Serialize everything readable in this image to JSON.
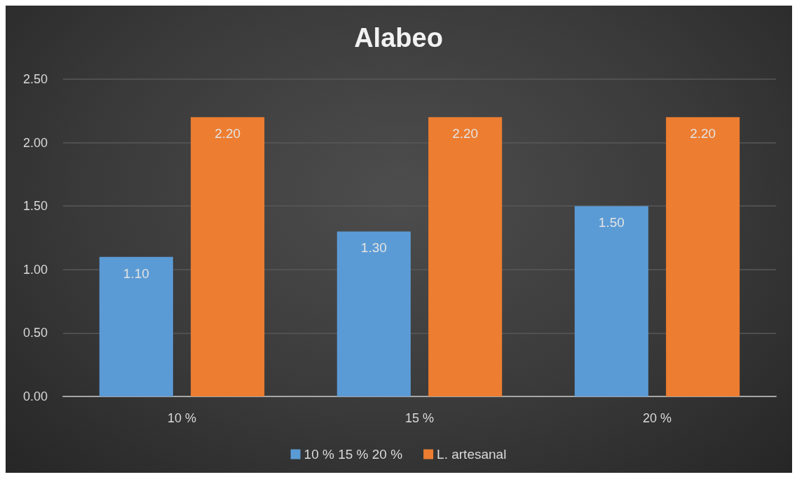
{
  "chart_data": {
    "type": "bar",
    "title": "Alabeo",
    "categories": [
      "10 %",
      "15 %",
      "20 %"
    ],
    "series": [
      {
        "name": "10 % 15 % 20 %",
        "color": "#5b9bd5",
        "values": [
          1.1,
          1.3,
          1.5
        ],
        "value_labels": [
          "1.10",
          "1.30",
          "1.50"
        ]
      },
      {
        "name": "L. artesanal",
        "color": "#ed7d31",
        "values": [
          2.2,
          2.2,
          2.2
        ],
        "value_labels": [
          "2.20",
          "2.20",
          "2.20"
        ]
      }
    ],
    "ylim": [
      0,
      2.5
    ],
    "yticks": [
      {
        "value": 0,
        "label": "0.00"
      },
      {
        "value": 0.5,
        "label": "0.50"
      },
      {
        "value": 1,
        "label": "1.00"
      },
      {
        "value": 1.5,
        "label": "1.50"
      },
      {
        "value": 2,
        "label": "2.00"
      },
      {
        "value": 2.5,
        "label": "2.50"
      }
    ],
    "grid": "y",
    "legend": "bottom"
  }
}
